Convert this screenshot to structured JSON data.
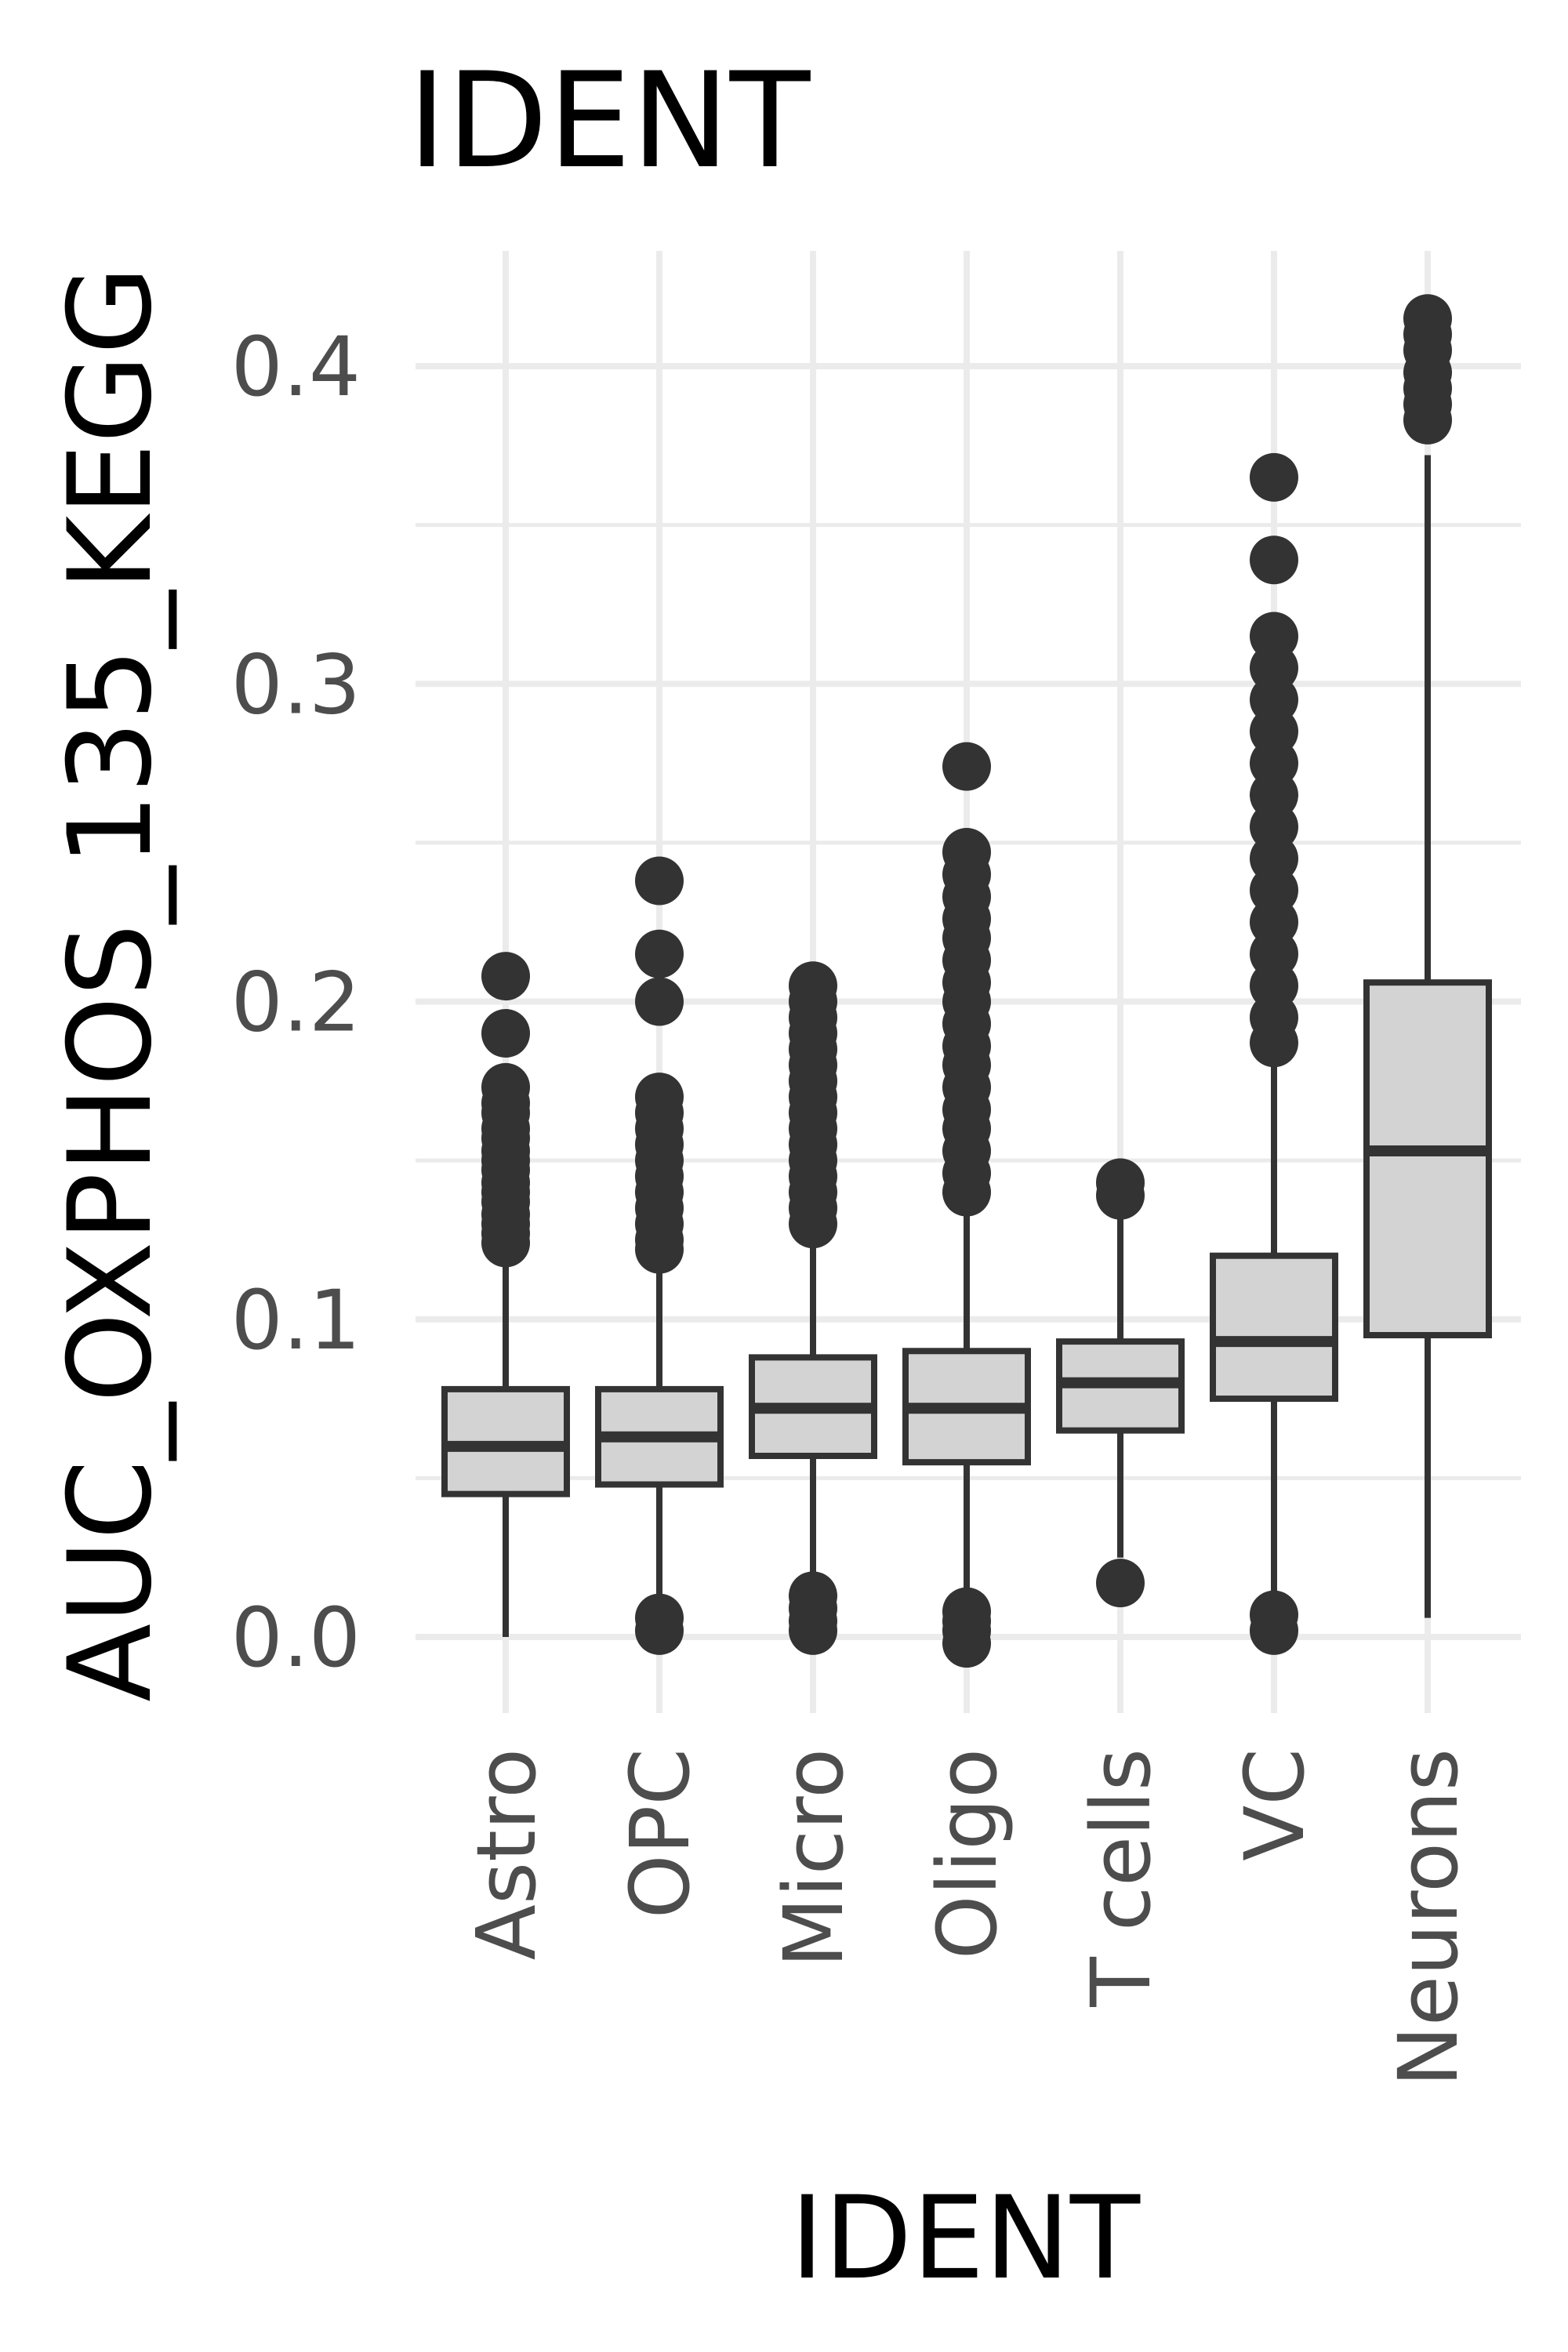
{
  "chart_data": {
    "type": "box",
    "title": "IDENT",
    "xlabel": "IDENT",
    "ylabel": "AUC_OXPHOS_135_KEGG",
    "ylim": [
      -0.01,
      0.43
    ],
    "yticks": [
      "0.0",
      "0.1",
      "0.2",
      "0.3",
      "0.4"
    ],
    "grid": true,
    "colors": {
      "box_fill": "#d3d3d3",
      "box_line": "#333333",
      "grid": "#ebebeb",
      "tick_text": "#4d4d4d"
    },
    "categories": [
      "Astro",
      "OPC",
      "Micro",
      "Oligo",
      "T cells",
      "VC",
      "Neurons"
    ],
    "boxes": [
      {
        "name": "Astro",
        "lower_whisker": 0.0,
        "q1": 0.045,
        "median": 0.06,
        "q3": 0.078,
        "upper_whisker": 0.12,
        "outliers": [
          0.208,
          0.19,
          0.173,
          0.168,
          0.165,
          0.16,
          0.157,
          0.153,
          0.15,
          0.147,
          0.143,
          0.14,
          0.137,
          0.133,
          0.13,
          0.127,
          0.124
        ]
      },
      {
        "name": "OPC",
        "lower_whisker": 0.01,
        "q1": 0.048,
        "median": 0.063,
        "q3": 0.078,
        "upper_whisker": 0.12,
        "outliers": [
          0.238,
          0.215,
          0.2,
          0.17,
          0.165,
          0.16,
          0.155,
          0.15,
          0.145,
          0.14,
          0.135,
          0.13,
          0.125,
          0.122,
          0.006,
          0.002
        ]
      },
      {
        "name": "Micro",
        "lower_whisker": 0.015,
        "q1": 0.057,
        "median": 0.072,
        "q3": 0.088,
        "upper_whisker": 0.13,
        "outliers": [
          0.205,
          0.2,
          0.195,
          0.19,
          0.185,
          0.18,
          0.175,
          0.17,
          0.165,
          0.16,
          0.155,
          0.15,
          0.145,
          0.14,
          0.135,
          0.13,
          0.013,
          0.009,
          0.005,
          0.002
        ]
      },
      {
        "name": "Oligo",
        "lower_whisker": 0.01,
        "q1": 0.055,
        "median": 0.072,
        "q3": 0.09,
        "upper_whisker": 0.137,
        "outliers": [
          0.274,
          0.247,
          0.24,
          0.233,
          0.226,
          0.22,
          0.213,
          0.206,
          0.2,
          0.193,
          0.186,
          0.18,
          0.173,
          0.166,
          0.16,
          0.153,
          0.146,
          0.14,
          0.008,
          0.005,
          0.002,
          -0.002
        ]
      },
      {
        "name": "T cells",
        "lower_whisker": 0.025,
        "q1": 0.065,
        "median": 0.08,
        "q3": 0.093,
        "upper_whisker": 0.132,
        "outliers": [
          0.143,
          0.139,
          0.017
        ]
      },
      {
        "name": "VC",
        "lower_whisker": 0.01,
        "q1": 0.075,
        "median": 0.093,
        "q3": 0.12,
        "upper_whisker": 0.185,
        "outliers": [
          0.365,
          0.339,
          0.315,
          0.305,
          0.295,
          0.285,
          0.275,
          0.265,
          0.255,
          0.245,
          0.235,
          0.225,
          0.215,
          0.205,
          0.195,
          0.187,
          0.007,
          0.002
        ]
      },
      {
        "name": "Neurons",
        "lower_whisker": 0.006,
        "q1": 0.095,
        "median": 0.153,
        "q3": 0.206,
        "upper_whisker": 0.372,
        "outliers": [
          0.415,
          0.41,
          0.405,
          0.398,
          0.393,
          0.388,
          0.383
        ]
      }
    ]
  }
}
